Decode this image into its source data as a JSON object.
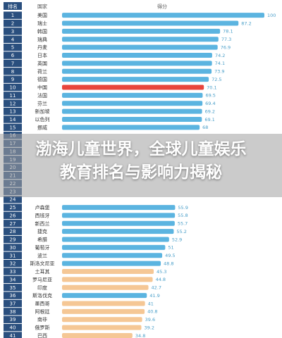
{
  "overlay_title": "渤海儿童世界，全球儿童娱乐\n教育排名与影响力揭秘",
  "chart_data": {
    "type": "bar",
    "orientation": "horizontal",
    "headers": {
      "rank": "排名",
      "country": "国家",
      "score": "得分"
    },
    "highlight_color": "#e8453c",
    "default_color": "#5bb4e0",
    "low_color": "#f5c795",
    "rows": [
      {
        "rank": "1",
        "country": "美国",
        "value": 100
      },
      {
        "rank": "2",
        "country": "瑞士",
        "value": 87.2
      },
      {
        "rank": "3",
        "country": "韩国",
        "value": 78.1
      },
      {
        "rank": "4",
        "country": "瑞典",
        "value": 77.3
      },
      {
        "rank": "5",
        "country": "丹麦",
        "value": 76.9
      },
      {
        "rank": "6",
        "country": "日本",
        "value": 74.2
      },
      {
        "rank": "7",
        "country": "英国",
        "value": 74.1
      },
      {
        "rank": "8",
        "country": "荷兰",
        "value": 73.9
      },
      {
        "rank": "9",
        "country": "德国",
        "value": 72.5
      },
      {
        "rank": "10",
        "country": "中国",
        "value": 70.1,
        "highlight": true
      },
      {
        "rank": "11",
        "country": "法国",
        "value": 69.5
      },
      {
        "rank": "12",
        "country": "芬兰",
        "value": 69.4
      },
      {
        "rank": "13",
        "country": "新加坡",
        "value": 69.2
      },
      {
        "rank": "14",
        "country": "以色列",
        "value": 69.1
      },
      {
        "rank": "15",
        "country": "挪威",
        "value": 68
      },
      {
        "rank": "16",
        "country": "",
        "value": null
      },
      {
        "rank": "17",
        "country": "",
        "value": null
      },
      {
        "rank": "18",
        "country": "",
        "value": null
      },
      {
        "rank": "19",
        "country": "",
        "value": null
      },
      {
        "rank": "20",
        "country": "",
        "value": null
      },
      {
        "rank": "21",
        "country": "",
        "value": null
      },
      {
        "rank": "22",
        "country": "",
        "value": null
      },
      {
        "rank": "23",
        "country": "",
        "value": null
      },
      {
        "rank": "24",
        "country": "",
        "value": null
      },
      {
        "rank": "25",
        "country": "卢森堡",
        "value": 55.9
      },
      {
        "rank": "26",
        "country": "西班牙",
        "value": 55.8
      },
      {
        "rank": "27",
        "country": "新西兰",
        "value": 55.7
      },
      {
        "rank": "28",
        "country": "捷克",
        "value": 55.2
      },
      {
        "rank": "29",
        "country": "希腊",
        "value": 52.9
      },
      {
        "rank": "30",
        "country": "葡萄牙",
        "value": 51
      },
      {
        "rank": "31",
        "country": "波兰",
        "value": 49.5
      },
      {
        "rank": "32",
        "country": "斯洛文尼亚",
        "value": 48.8
      },
      {
        "rank": "33",
        "country": "土耳其",
        "value": 45.3,
        "low": true
      },
      {
        "rank": "34",
        "country": "罗马尼亚",
        "value": 44.8,
        "low": true
      },
      {
        "rank": "35",
        "country": "印度",
        "value": 42.7,
        "low": true
      },
      {
        "rank": "36",
        "country": "斯洛伐克",
        "value": 41.9
      },
      {
        "rank": "37",
        "country": "墨西哥",
        "value": 41,
        "low": true
      },
      {
        "rank": "38",
        "country": "阿根廷",
        "value": 40.8,
        "low": true
      },
      {
        "rank": "39",
        "country": "南非",
        "value": 39.6,
        "low": true
      },
      {
        "rank": "40",
        "country": "俄罗斯",
        "value": 39.2,
        "low": true
      },
      {
        "rank": "41",
        "country": "巴西",
        "value": 34.8,
        "low": true
      }
    ]
  }
}
